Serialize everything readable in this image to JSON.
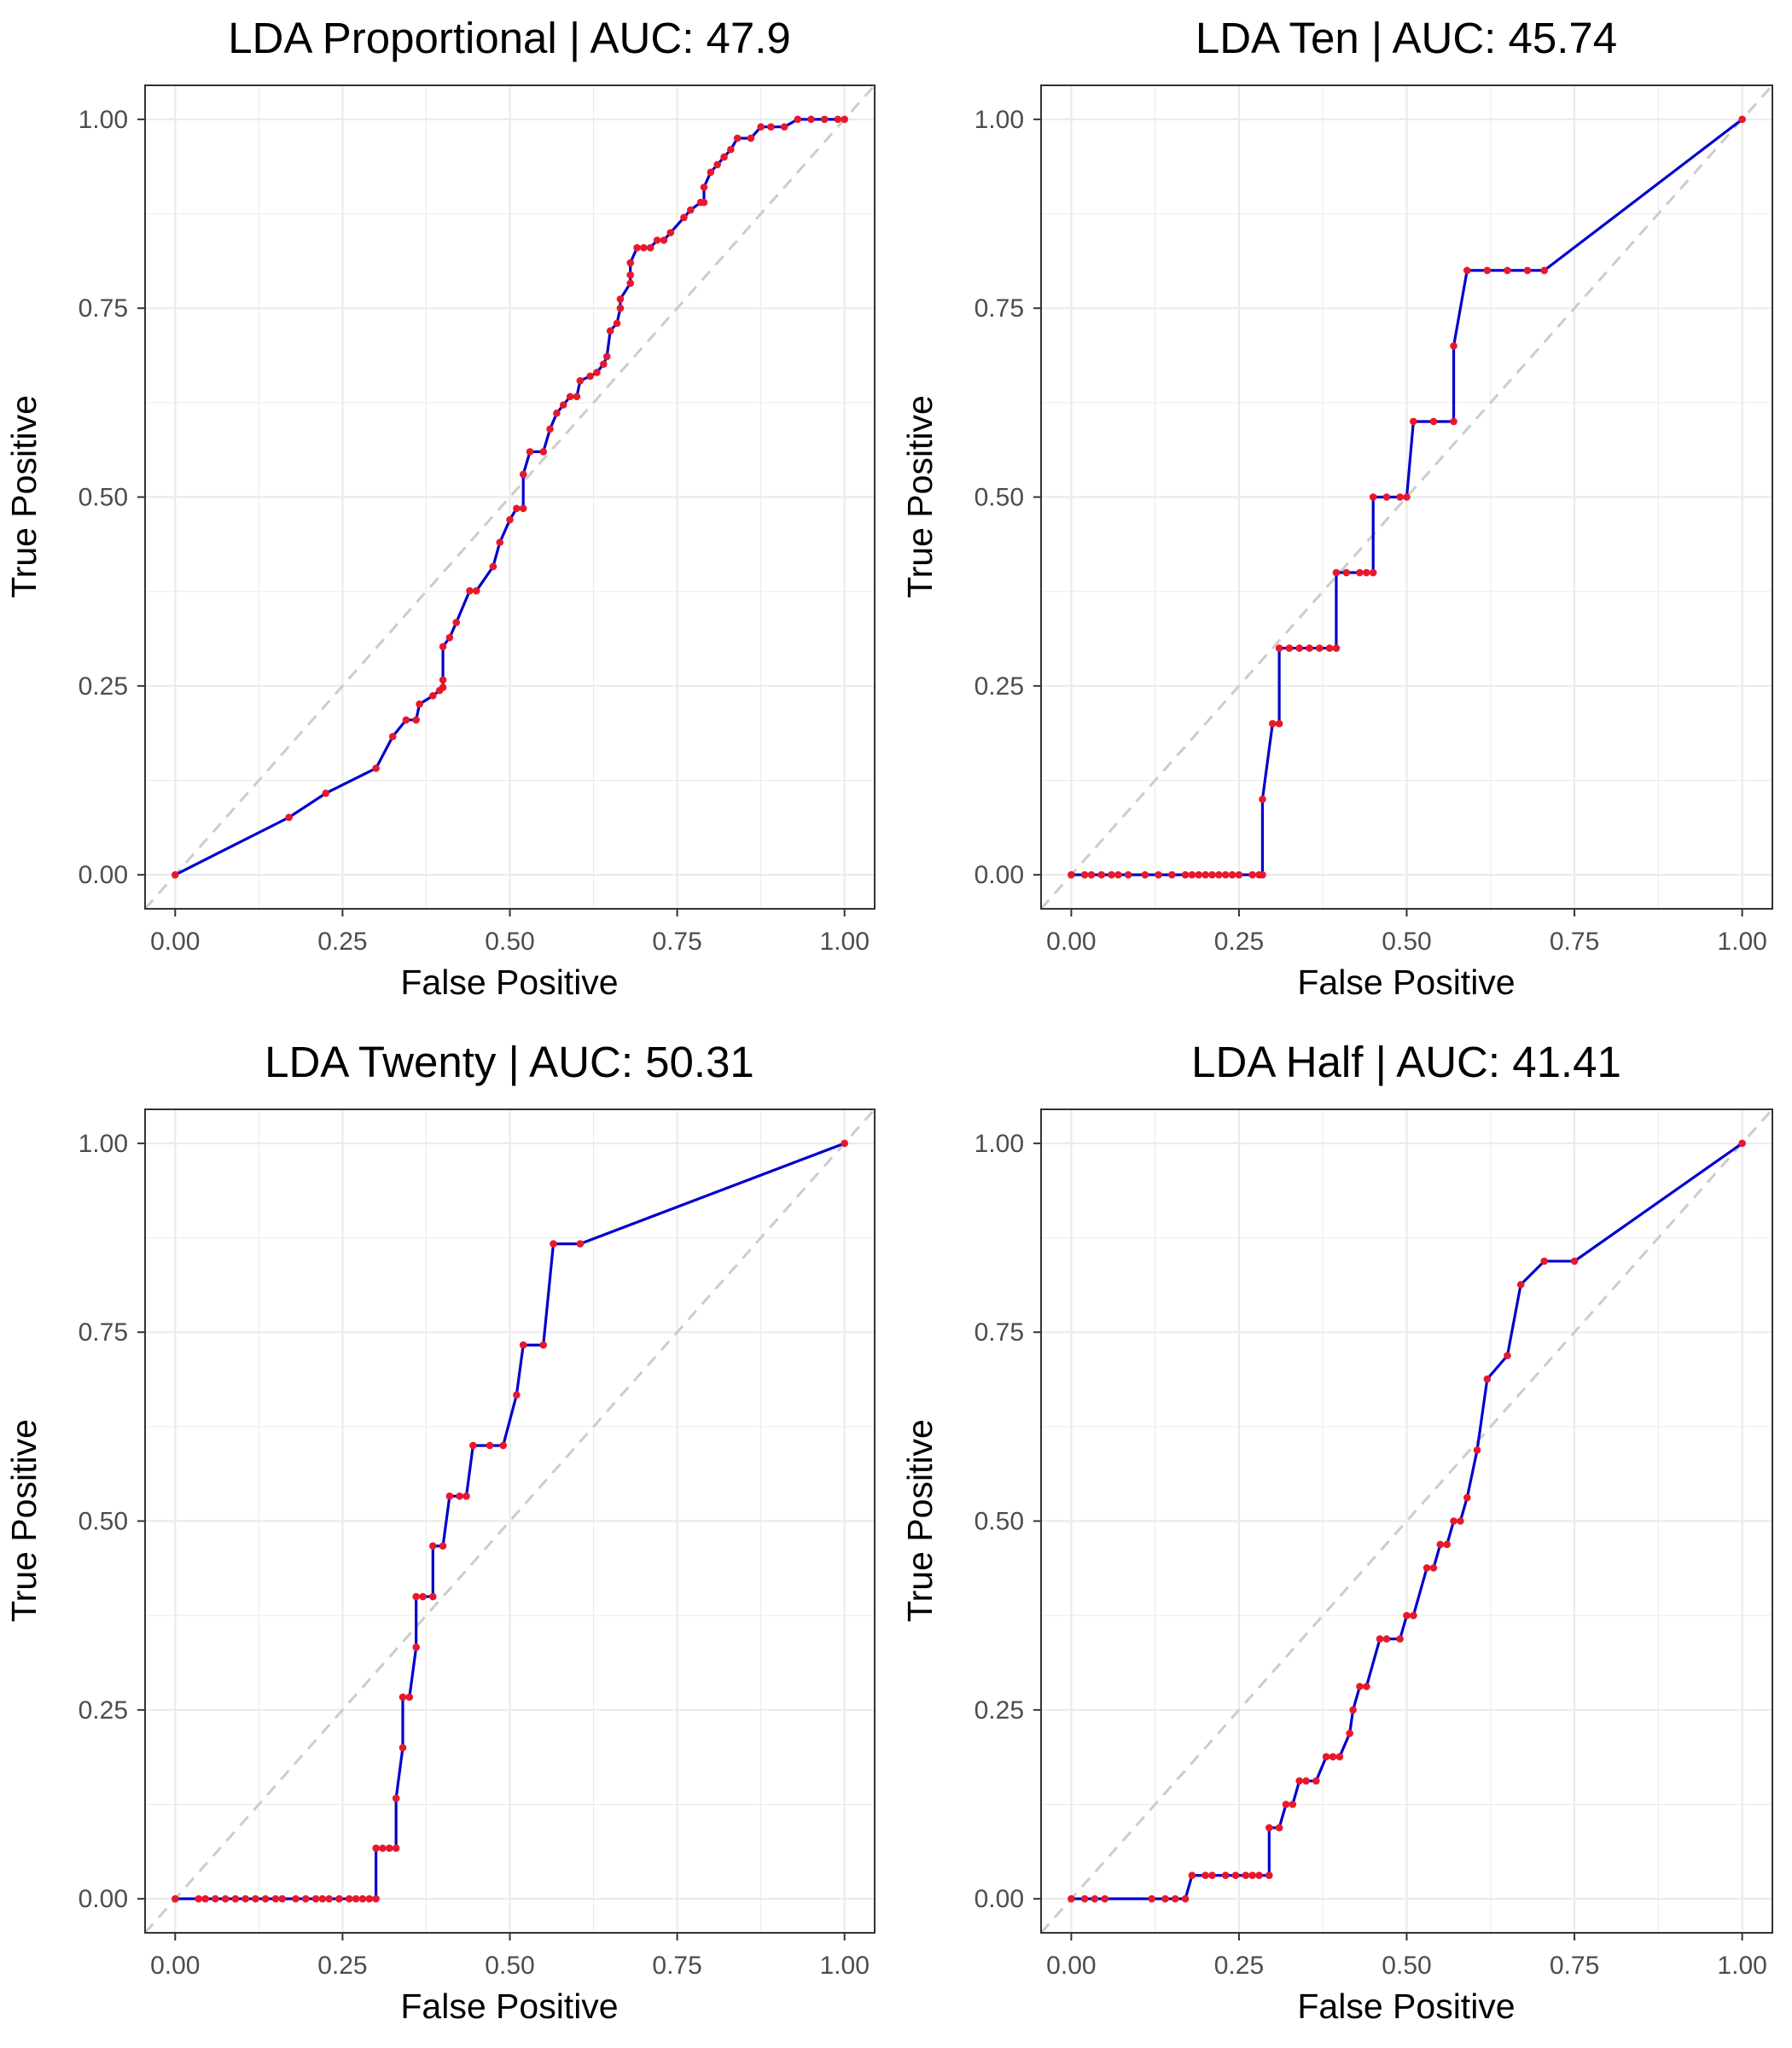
{
  "figure": {
    "background": "#ffffff"
  },
  "style": {
    "line_color": "#0000cd",
    "point_color": "#e8182c",
    "diagonal_color": "#cccccc",
    "grid_color": "#ebebeb",
    "axis_text_color": "#4d4d4d"
  },
  "chart_data": [
    {
      "type": "line",
      "title": "LDA Proportional | AUC: 47.9",
      "xlabel": "False Positive",
      "ylabel": "True Positive",
      "xlim": [
        0,
        1
      ],
      "ylim": [
        0,
        1
      ],
      "xticks": [
        "0.00",
        "0.25",
        "0.50",
        "0.75",
        "1.00"
      ],
      "yticks": [
        "0.00",
        "0.25",
        "0.50",
        "0.75",
        "1.00"
      ],
      "grid": true,
      "reference_line": "diagonal",
      "series": [
        {
          "x": [
            0.0,
            0.17,
            0.225,
            0.3,
            0.325,
            0.345,
            0.36,
            0.365,
            0.385,
            0.395,
            0.4,
            0.4,
            0.4,
            0.41,
            0.42,
            0.44,
            0.45,
            0.475,
            0.485,
            0.5,
            0.51,
            0.52,
            0.52,
            0.53,
            0.55,
            0.56,
            0.57,
            0.58,
            0.59,
            0.6,
            0.605,
            0.62,
            0.63,
            0.64,
            0.645,
            0.65,
            0.66,
            0.665,
            0.665,
            0.68,
            0.68,
            0.68,
            0.69,
            0.7,
            0.71,
            0.72,
            0.73,
            0.74,
            0.76,
            0.77,
            0.785,
            0.79,
            0.79,
            0.8,
            0.81,
            0.82,
            0.83,
            0.84,
            0.86,
            0.875,
            0.89,
            0.91,
            0.93,
            0.95,
            0.97,
            0.99,
            1.0
          ],
          "y": [
            0.0,
            0.076,
            0.108,
            0.141,
            0.183,
            0.205,
            0.205,
            0.226,
            0.237,
            0.244,
            0.248,
            0.258,
            0.302,
            0.314,
            0.334,
            0.376,
            0.376,
            0.408,
            0.44,
            0.47,
            0.485,
            0.485,
            0.53,
            0.56,
            0.56,
            0.59,
            0.611,
            0.622,
            0.633,
            0.633,
            0.654,
            0.66,
            0.665,
            0.676,
            0.686,
            0.72,
            0.73,
            0.75,
            0.762,
            0.783,
            0.794,
            0.81,
            0.83,
            0.83,
            0.83,
            0.84,
            0.84,
            0.85,
            0.87,
            0.88,
            0.89,
            0.89,
            0.91,
            0.93,
            0.94,
            0.95,
            0.96,
            0.975,
            0.975,
            0.99,
            0.99,
            0.99,
            1.0,
            1.0,
            1.0,
            1.0,
            1.0
          ]
        }
      ]
    },
    {
      "type": "line",
      "title": "LDA Ten | AUC: 45.74",
      "xlabel": "False Positive",
      "ylabel": "True Positive",
      "xlim": [
        0,
        1
      ],
      "ylim": [
        0,
        1
      ],
      "xticks": [
        "0.00",
        "0.25",
        "0.50",
        "0.75",
        "1.00"
      ],
      "yticks": [
        "0.00",
        "0.25",
        "0.50",
        "0.75",
        "1.00"
      ],
      "grid": true,
      "reference_line": "diagonal",
      "series": [
        {
          "x": [
            0.0,
            0.02,
            0.03,
            0.045,
            0.06,
            0.07,
            0.085,
            0.11,
            0.13,
            0.15,
            0.17,
            0.18,
            0.19,
            0.2,
            0.21,
            0.22,
            0.23,
            0.24,
            0.25,
            0.27,
            0.28,
            0.285,
            0.285,
            0.3,
            0.31,
            0.31,
            0.325,
            0.34,
            0.355,
            0.37,
            0.385,
            0.395,
            0.395,
            0.41,
            0.43,
            0.44,
            0.45,
            0.45,
            0.47,
            0.49,
            0.5,
            0.51,
            0.54,
            0.57,
            0.57,
            0.59,
            0.62,
            0.65,
            0.68,
            0.705,
            1.0
          ],
          "y": [
            0.0,
            0.0,
            0.0,
            0.0,
            0.0,
            0.0,
            0.0,
            0.0,
            0.0,
            0.0,
            0.0,
            0.0,
            0.0,
            0.0,
            0.0,
            0.0,
            0.0,
            0.0,
            0.0,
            0.0,
            0.0,
            0.0,
            0.1,
            0.2,
            0.2,
            0.3,
            0.3,
            0.3,
            0.3,
            0.3,
            0.3,
            0.3,
            0.4,
            0.4,
            0.4,
            0.4,
            0.4,
            0.5,
            0.5,
            0.5,
            0.5,
            0.6,
            0.6,
            0.6,
            0.7,
            0.8,
            0.8,
            0.8,
            0.8,
            0.8,
            1.0
          ]
        }
      ]
    },
    {
      "type": "line",
      "title": "LDA Twenty | AUC: 50.31",
      "xlabel": "False Positive",
      "ylabel": "True Positive",
      "xlim": [
        0,
        1
      ],
      "ylim": [
        0,
        1
      ],
      "xticks": [
        "0.00",
        "0.25",
        "0.50",
        "0.75",
        "1.00"
      ],
      "yticks": [
        "0.00",
        "0.25",
        "0.50",
        "0.75",
        "1.00"
      ],
      "grid": true,
      "reference_line": "diagonal",
      "series": [
        {
          "x": [
            0.0,
            0.035,
            0.045,
            0.06,
            0.075,
            0.09,
            0.105,
            0.12,
            0.135,
            0.15,
            0.16,
            0.18,
            0.195,
            0.21,
            0.22,
            0.23,
            0.245,
            0.26,
            0.27,
            0.28,
            0.29,
            0.3,
            0.3,
            0.31,
            0.32,
            0.33,
            0.33,
            0.34,
            0.34,
            0.35,
            0.36,
            0.36,
            0.37,
            0.385,
            0.385,
            0.4,
            0.41,
            0.425,
            0.435,
            0.445,
            0.47,
            0.49,
            0.51,
            0.52,
            0.55,
            0.565,
            0.605,
            1.0
          ],
          "y": [
            0.0,
            0.0,
            0.0,
            0.0,
            0.0,
            0.0,
            0.0,
            0.0,
            0.0,
            0.0,
            0.0,
            0.0,
            0.0,
            0.0,
            0.0,
            0.0,
            0.0,
            0.0,
            0.0,
            0.0,
            0.0,
            0.0,
            0.067,
            0.067,
            0.067,
            0.067,
            0.133,
            0.2,
            0.267,
            0.267,
            0.333,
            0.4,
            0.4,
            0.4,
            0.467,
            0.467,
            0.533,
            0.533,
            0.533,
            0.6,
            0.6,
            0.6,
            0.667,
            0.733,
            0.733,
            0.867,
            0.867,
            1.0
          ]
        }
      ]
    },
    {
      "type": "line",
      "title": "LDA Half | AUC: 41.41",
      "xlabel": "False Positive",
      "ylabel": "True Positive",
      "xlim": [
        0,
        1
      ],
      "ylim": [
        0,
        1
      ],
      "xticks": [
        "0.00",
        "0.25",
        "0.50",
        "0.75",
        "1.00"
      ],
      "yticks": [
        "0.00",
        "0.25",
        "0.50",
        "0.75",
        "1.00"
      ],
      "grid": true,
      "reference_line": "diagonal",
      "series": [
        {
          "x": [
            0.0,
            0.02,
            0.035,
            0.05,
            0.12,
            0.14,
            0.155,
            0.17,
            0.18,
            0.2,
            0.21,
            0.23,
            0.245,
            0.26,
            0.27,
            0.28,
            0.295,
            0.295,
            0.31,
            0.32,
            0.33,
            0.34,
            0.35,
            0.365,
            0.38,
            0.39,
            0.4,
            0.415,
            0.42,
            0.43,
            0.44,
            0.46,
            0.47,
            0.49,
            0.5,
            0.51,
            0.53,
            0.54,
            0.55,
            0.56,
            0.57,
            0.58,
            0.59,
            0.605,
            0.62,
            0.65,
            0.67,
            0.705,
            0.75,
            1.0
          ],
          "y": [
            0.0,
            0.0,
            0.0,
            0.0,
            0.0,
            0.0,
            0.0,
            0.0,
            0.031,
            0.031,
            0.031,
            0.031,
            0.031,
            0.031,
            0.031,
            0.031,
            0.031,
            0.094,
            0.094,
            0.125,
            0.125,
            0.156,
            0.156,
            0.156,
            0.188,
            0.188,
            0.188,
            0.219,
            0.25,
            0.281,
            0.281,
            0.344,
            0.344,
            0.344,
            0.375,
            0.375,
            0.438,
            0.438,
            0.469,
            0.469,
            0.5,
            0.5,
            0.531,
            0.594,
            0.688,
            0.719,
            0.813,
            0.844,
            0.844,
            1.0
          ]
        }
      ]
    }
  ]
}
